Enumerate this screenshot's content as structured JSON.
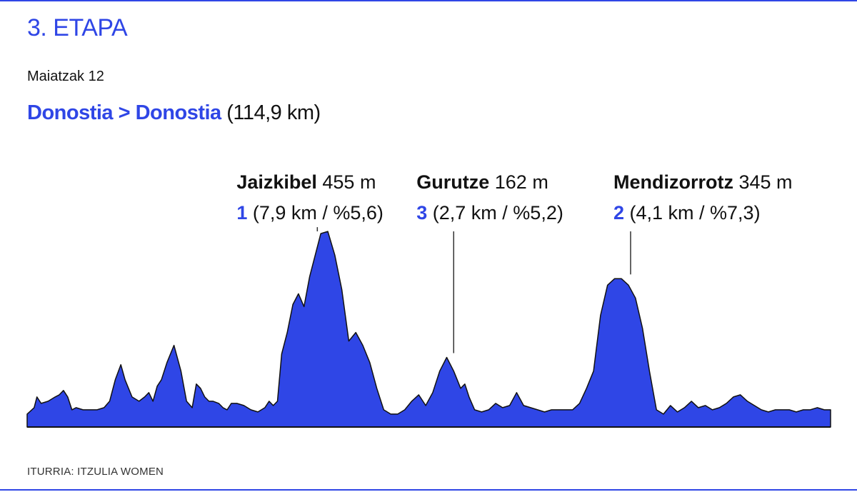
{
  "stage": {
    "title": "3. ETAPA",
    "date": "Maiatzak 12",
    "route": "Donostia > Donostia",
    "distance": "(114,9 km)"
  },
  "colors": {
    "accent": "#2f46e6",
    "profile_fill": "#2f46e6",
    "profile_stroke": "#111111",
    "leader_line": "#333333"
  },
  "chart_data": {
    "type": "area",
    "title": "",
    "xlabel": "",
    "ylabel": "",
    "xlim": [
      0,
      114.9
    ],
    "ylim": [
      0,
      500
    ],
    "grid": false,
    "series": [
      {
        "x": [
          0,
          1.0,
          1.4,
          2.0,
          3.0,
          4.0,
          4.6,
          5.2,
          5.8,
          6.4,
          7.0,
          8.0,
          9.0,
          10.0,
          11.0,
          11.8,
          12.6,
          13.4,
          14.0,
          15.0,
          16.0,
          16.8,
          17.4,
          18.0,
          18.6,
          19.2,
          20.0,
          21.0,
          22.0,
          22.8,
          23.6,
          24.2,
          24.8,
          25.4,
          26.0,
          26.6,
          27.4,
          28.0,
          28.6,
          29.2,
          30.0,
          31.0,
          32.0,
          33.0,
          34.0,
          34.6,
          35.2,
          35.8,
          36.4,
          37.2,
          38.0,
          38.8,
          39.6,
          40.4,
          41.2,
          42.0,
          43.0,
          44.0,
          45.0,
          46.0,
          47.0,
          48.0,
          49.0,
          50.0,
          51.0,
          52.0,
          53.0,
          54.0,
          55.0,
          56.0,
          57.0,
          58.0,
          59.0,
          60.0,
          61.0,
          61.5,
          62.0,
          62.6,
          63.2,
          64.0,
          65.0,
          66.0,
          67.0,
          68.0,
          69.0,
          70.0,
          71.0,
          72.0,
          73.0,
          74.0,
          75.0,
          76.0,
          77.0,
          78.0,
          79.0,
          80.0,
          81.0,
          82.0,
          83.0,
          84.0,
          85.0,
          86.0,
          87.0,
          88.0,
          89.0,
          90.0,
          91.0,
          92.0,
          93.0,
          94.0,
          95.0,
          96.0,
          97.0,
          98.0,
          99.0,
          100.0,
          101.0,
          102.0,
          103.0,
          104.0,
          105.0,
          106.0,
          107.0,
          108.0,
          109.0,
          110.0,
          111.0,
          112.0,
          113.0,
          114.0,
          114.9
        ],
        "values": [
          30,
          45,
          70,
          55,
          60,
          70,
          75,
          85,
          70,
          40,
          45,
          40,
          40,
          40,
          45,
          60,
          110,
          145,
          110,
          70,
          60,
          70,
          80,
          60,
          95,
          110,
          150,
          190,
          130,
          60,
          45,
          100,
          90,
          70,
          60,
          60,
          55,
          45,
          40,
          55,
          55,
          50,
          40,
          35,
          45,
          60,
          50,
          60,
          170,
          220,
          285,
          310,
          280,
          350,
          400,
          450,
          455,
          400,
          320,
          200,
          220,
          190,
          150,
          90,
          40,
          30,
          30,
          40,
          60,
          75,
          50,
          80,
          130,
          162,
          130,
          110,
          90,
          100,
          70,
          40,
          35,
          40,
          55,
          45,
          50,
          80,
          50,
          45,
          40,
          35,
          40,
          40,
          40,
          40,
          55,
          90,
          130,
          260,
          330,
          345,
          345,
          330,
          300,
          230,
          130,
          40,
          30,
          50,
          35,
          45,
          60,
          45,
          50,
          40,
          45,
          55,
          70,
          75,
          60,
          50,
          40,
          35,
          40,
          40,
          40,
          35,
          40,
          40,
          45,
          40,
          40
        ]
      }
    ],
    "annotations": [
      {
        "name": "Jaizkibel",
        "elevation": "455 m",
        "category": "1",
        "detail": "(7,9 km / %5,6)",
        "x": 41.5,
        "y": 455
      },
      {
        "name": "Gurutze",
        "elevation": "162 m",
        "category": "3",
        "detail": "(2,7 km / %5,2)",
        "x": 61.0,
        "y": 162
      },
      {
        "name": "Mendizorrotz",
        "elevation": "345 m",
        "category": "2",
        "detail": "(4,1 km / %7,3)",
        "x": 86.3,
        "y": 345
      }
    ]
  },
  "source": "ITURRIA: ITZULIA WOMEN"
}
